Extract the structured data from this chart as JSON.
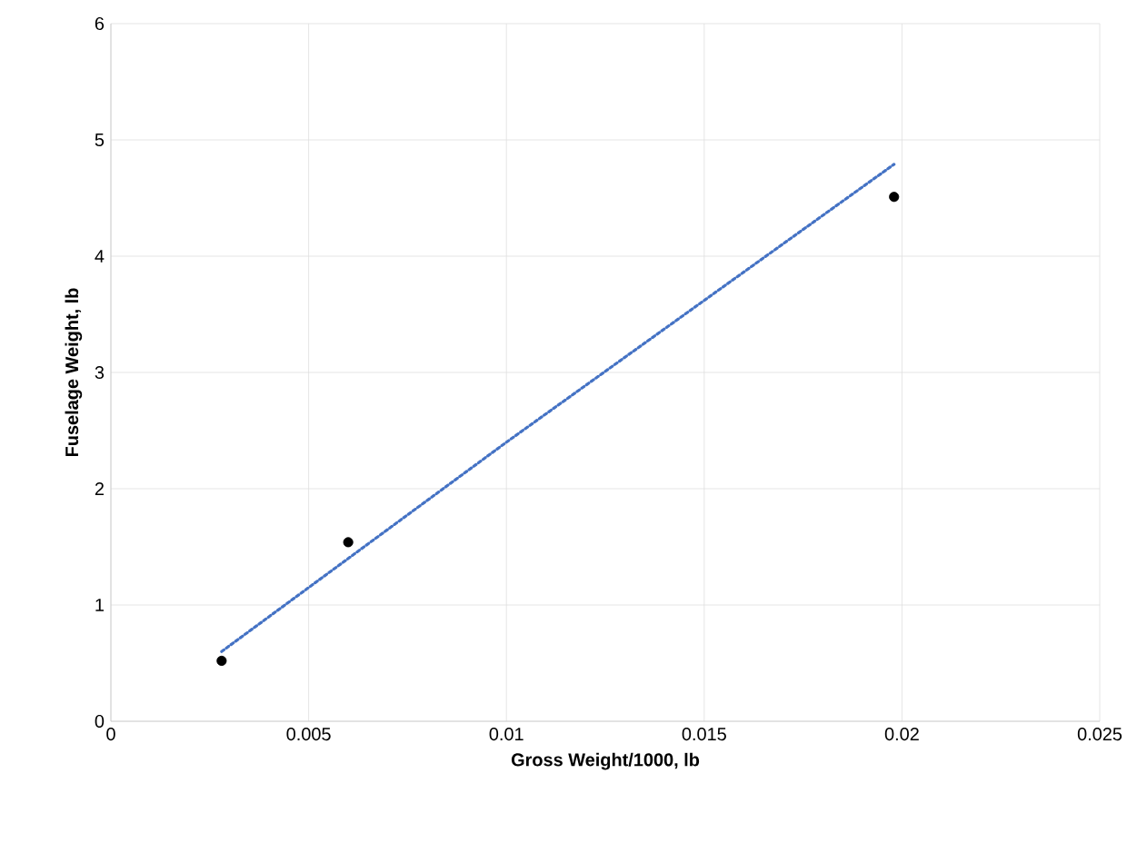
{
  "chart_data": {
    "type": "scatter",
    "xlabel": "Gross Weight/1000, lb",
    "ylabel": "Fuselage Weight, lb",
    "xlim": [
      0,
      0.025
    ],
    "xticks": [
      0,
      0.005,
      0.01,
      0.015,
      0.02,
      0.025
    ],
    "ylim": [
      0,
      6
    ],
    "yticks": [
      0,
      1,
      2,
      3,
      4,
      5,
      6
    ],
    "grid": true,
    "series": [
      {
        "type": "scatter",
        "color": "#000000",
        "marker": "circle",
        "x": [
          0.0028,
          0.006,
          0.0198
        ],
        "values": [
          0.52,
          1.54,
          4.51
        ]
      },
      {
        "type": "line",
        "color": "#4472c4",
        "line_style": "dotted",
        "marker": "none",
        "x": [
          0.0028,
          0.01,
          0.0198
        ],
        "values": [
          0.6,
          2.4,
          4.79
        ]
      }
    ]
  }
}
